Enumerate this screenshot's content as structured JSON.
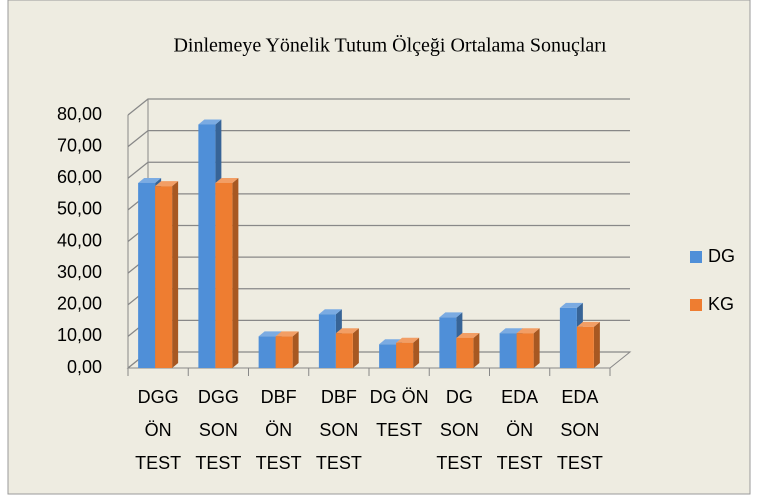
{
  "chart_data": {
    "type": "bar3d",
    "title": "Dinlemeye Yönelik Tutum Ölçeği Ortalama Sonuçları",
    "categories": [
      "DGG ÖN TEST",
      "DGG SON TEST",
      "DBF ÖN TEST",
      "DBF SON TEST",
      "DG ÖN TEST",
      "DG SON TEST",
      "EDA ÖN TEST",
      "EDA SON TEST"
    ],
    "series": [
      {
        "name": "DG",
        "color": "#4f8fd8",
        "values": [
          58.5,
          77,
          10,
          17,
          7.5,
          16,
          11,
          19
        ]
      },
      {
        "name": "KG",
        "color": "#ee7d31",
        "values": [
          57.5,
          58.5,
          10,
          11,
          8,
          9.5,
          11,
          13
        ]
      }
    ],
    "ylim": [
      0,
      80
    ],
    "yticks": [
      {
        "value": 0,
        "label": "0,00"
      },
      {
        "value": 10,
        "label": "10,00"
      },
      {
        "value": 20,
        "label": "20,00"
      },
      {
        "value": 30,
        "label": "30,00"
      },
      {
        "value": 40,
        "label": "40,00"
      },
      {
        "value": 50,
        "label": "50,00"
      },
      {
        "value": 60,
        "label": "60,00"
      },
      {
        "value": 70,
        "label": "70,00"
      },
      {
        "value": 80,
        "label": "80,00"
      }
    ],
    "grid": true,
    "legend": "right"
  }
}
